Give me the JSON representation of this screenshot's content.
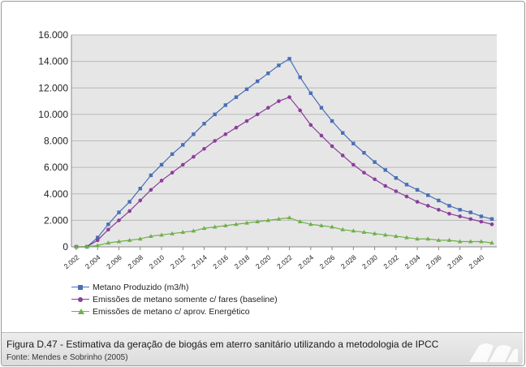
{
  "chart_data": {
    "type": "line",
    "title": "",
    "xlabel": "",
    "ylabel": "",
    "ylim": [
      0,
      16000
    ],
    "yticks": [
      "0",
      "2.000",
      "4.000",
      "6.000",
      "8.000",
      "10.000",
      "12.000",
      "14.000",
      "16.000"
    ],
    "xticks": [
      "2.002",
      "2.004",
      "2.006",
      "2.008",
      "2.010",
      "2.012",
      "2.014",
      "2.016",
      "2.018",
      "2.020",
      "2.022",
      "2.024",
      "2.026",
      "2.028",
      "2.030",
      "2.032",
      "2.034",
      "2.036",
      "2.038",
      "2.040"
    ],
    "x": [
      2002,
      2003,
      2004,
      2005,
      2006,
      2007,
      2008,
      2009,
      2010,
      2011,
      2012,
      2013,
      2014,
      2015,
      2016,
      2017,
      2018,
      2019,
      2020,
      2021,
      2022,
      2023,
      2024,
      2025,
      2026,
      2027,
      2028,
      2029,
      2030,
      2031,
      2032,
      2033,
      2034,
      2035,
      2036,
      2037,
      2038,
      2039,
      2040,
      2041
    ],
    "grid": true,
    "legend_position": "bottom-left",
    "series": [
      {
        "name": "Metano Produzido (m3/h)",
        "color": "#4a6fb5",
        "marker": "square",
        "values": [
          0,
          0,
          700,
          1700,
          2600,
          3400,
          4400,
          5400,
          6200,
          7000,
          7700,
          8500,
          9300,
          10000,
          10700,
          11300,
          11900,
          12500,
          13100,
          13700,
          14200,
          12800,
          11600,
          10500,
          9500,
          8600,
          7800,
          7100,
          6400,
          5800,
          5200,
          4700,
          4300,
          3900,
          3500,
          3100,
          2800,
          2600,
          2300,
          2100
        ]
      },
      {
        "name": "Emissões de metano somente c/ fares (baseline)",
        "color": "#8a3f9a",
        "marker": "circle",
        "values": [
          0,
          0,
          500,
          1300,
          2000,
          2700,
          3500,
          4300,
          5000,
          5600,
          6200,
          6800,
          7400,
          8000,
          8500,
          9000,
          9500,
          10000,
          10500,
          11000,
          11300,
          10300,
          9200,
          8400,
          7600,
          6900,
          6200,
          5600,
          5100,
          4600,
          4200,
          3800,
          3400,
          3100,
          2800,
          2500,
          2300,
          2100,
          1900,
          1700
        ]
      },
      {
        "name": "Emissões de metano c/ aprov. Energético",
        "color": "#6fb04a",
        "marker": "triangle",
        "values": [
          0,
          0,
          100,
          300,
          400,
          500,
          600,
          800,
          900,
          1000,
          1100,
          1200,
          1400,
          1500,
          1600,
          1700,
          1800,
          1900,
          2000,
          2100,
          2200,
          1900,
          1700,
          1600,
          1500,
          1300,
          1200,
          1100,
          1000,
          900,
          800,
          700,
          600,
          600,
          500,
          500,
          400,
          400,
          400,
          300
        ]
      }
    ]
  },
  "caption": {
    "title": "Figura D.47 - Estimativa da geração de biogás em aterro sanitário utilizando a metodologia de IPCC",
    "source": "Fonte: Mendes e Sobrinho (2005)"
  }
}
